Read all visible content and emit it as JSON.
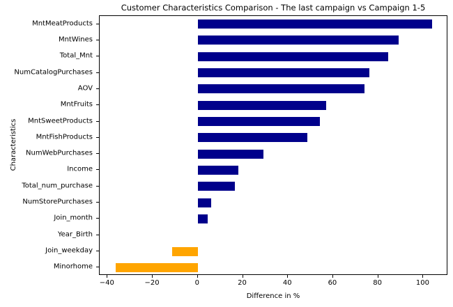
{
  "chart_data": {
    "type": "bar",
    "orientation": "horizontal",
    "title": "Customer Characteristics Comparison - The last campaign vs Campaign 1-5",
    "xlabel": "Difference in %",
    "ylabel": "Characteristics",
    "categories": [
      "MntMeatProducts",
      "MntWines",
      "Total_Mnt",
      "NumCatalogPurchases",
      "AOV",
      "MntFruits",
      "MntSweetProducts",
      "MntFishProducts",
      "NumWebPurchases",
      "Income",
      "Total_num_purchase",
      "NumStorePurchases",
      "Join_month",
      "Year_Birth",
      "Join_weekday",
      "Minorhome"
    ],
    "values": [
      104,
      89,
      84.5,
      76,
      74,
      57,
      54,
      48.5,
      29,
      18,
      16.5,
      6,
      4.5,
      0,
      -11.5,
      -36.5
    ],
    "x_ticks": [
      -40,
      -20,
      0,
      20,
      40,
      60,
      80,
      100
    ],
    "xlim": [
      -43.5,
      111
    ],
    "bar_color_positive": "#00008B",
    "bar_color_negative": "#FFA500",
    "grid": false,
    "legend_position": "none"
  }
}
